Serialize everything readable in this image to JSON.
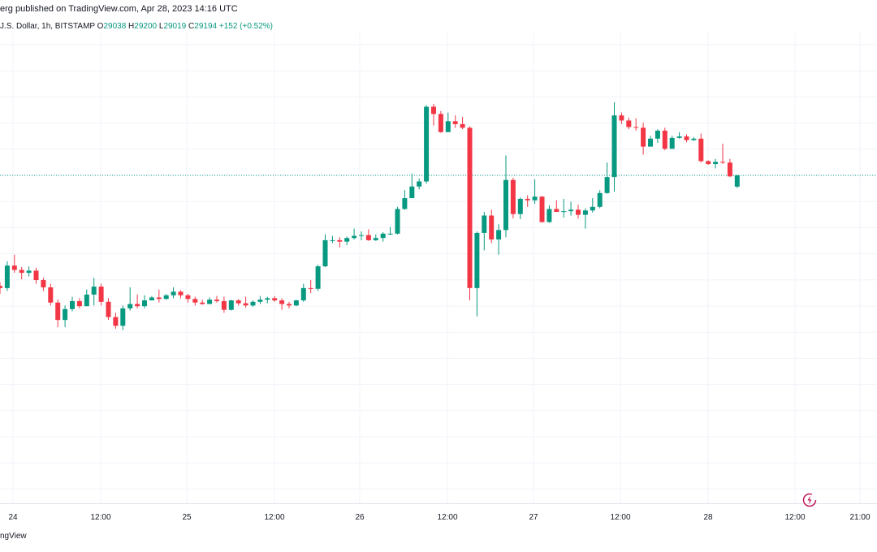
{
  "header": {
    "published": "erg published on TradingView.com, Apr 28, 2023 14:16 UTC",
    "symbol": "J.S. Dollar, 1h, BITSTAMP",
    "o_label": "O",
    "o_value": "29038",
    "h_label": "H",
    "h_value": "29200",
    "l_label": "L",
    "l_value": "29019",
    "c_label": "C",
    "c_value": "29194",
    "change": "+152 (+0.52%)"
  },
  "footer": {
    "brand": "ngView"
  },
  "icons": {
    "alert": "lightning-alert-icon"
  },
  "colors": {
    "up": "#089981",
    "down": "#f23645",
    "grid": "#f0f3fa",
    "last_price_line": "#089981"
  },
  "chart_data": {
    "type": "candlestick",
    "interval": "1h",
    "exchange": "BITSTAMP",
    "x_ticks": [
      "24",
      "12:00",
      "25",
      "12:00",
      "26",
      "12:00",
      "27",
      "12:00",
      "28",
      "12:00",
      "21:00"
    ],
    "last_price": 29194,
    "candles": [
      [
        27670,
        27640,
        27720,
        27560
      ],
      [
        27640,
        27950,
        28010,
        27600
      ],
      [
        27950,
        27890,
        28100,
        27850
      ],
      [
        27890,
        27850,
        27930,
        27760
      ],
      [
        27850,
        27880,
        27940,
        27800
      ],
      [
        27880,
        27750,
        27920,
        27700
      ],
      [
        27750,
        27650,
        27780,
        27600
      ],
      [
        27650,
        27440,
        27700,
        27400
      ],
      [
        27440,
        27200,
        27480,
        27100
      ],
      [
        27200,
        27350,
        27400,
        27100
      ],
      [
        27350,
        27460,
        27520,
        27320
      ],
      [
        27460,
        27390,
        27500,
        27360
      ],
      [
        27390,
        27550,
        27620,
        27390
      ],
      [
        27550,
        27660,
        27780,
        27400
      ],
      [
        27660,
        27450,
        27700,
        27400
      ],
      [
        27450,
        27240,
        27500,
        27200
      ],
      [
        27240,
        27120,
        27300,
        27080
      ],
      [
        27120,
        27360,
        27400,
        27060
      ],
      [
        27360,
        27420,
        27650,
        27330
      ],
      [
        27420,
        27390,
        27550,
        27360
      ],
      [
        27390,
        27470,
        27540,
        27360
      ],
      [
        27470,
        27510,
        27530,
        27470
      ],
      [
        27510,
        27490,
        27620,
        27440
      ],
      [
        27490,
        27540,
        27560,
        27480
      ],
      [
        27540,
        27590,
        27650,
        27500
      ],
      [
        27590,
        27540,
        27610,
        27500
      ],
      [
        27540,
        27490,
        27560,
        27440
      ],
      [
        27490,
        27440,
        27520,
        27400
      ],
      [
        27440,
        27420,
        27480,
        27410
      ],
      [
        27420,
        27480,
        27510,
        27420
      ],
      [
        27480,
        27460,
        27530,
        27440
      ],
      [
        27460,
        27340,
        27520,
        27300
      ],
      [
        27340,
        27470,
        27480,
        27330
      ],
      [
        27470,
        27430,
        27490,
        27400
      ],
      [
        27430,
        27400,
        27520,
        27370
      ],
      [
        27400,
        27450,
        27470,
        27380
      ],
      [
        27450,
        27480,
        27530,
        27420
      ],
      [
        27480,
        27500,
        27520,
        27430
      ],
      [
        27500,
        27470,
        27530,
        27450
      ],
      [
        27470,
        27420,
        27500,
        27340
      ],
      [
        27420,
        27400,
        27450,
        27360
      ],
      [
        27400,
        27470,
        27480,
        27390
      ],
      [
        27470,
        27640,
        27700,
        27450
      ],
      [
        27640,
        27630,
        27750,
        27570
      ],
      [
        27630,
        27940,
        27960,
        27600
      ],
      [
        27940,
        28300,
        28380,
        27930
      ],
      [
        28300,
        28300,
        28360,
        28260
      ],
      [
        28300,
        28280,
        28340,
        28200
      ],
      [
        28280,
        28330,
        28350,
        28230
      ],
      [
        28330,
        28360,
        28460,
        28310
      ],
      [
        28360,
        28370,
        28420,
        28300
      ],
      [
        28370,
        28300,
        28450,
        28290
      ],
      [
        28300,
        28330,
        28380,
        28290
      ],
      [
        28330,
        28390,
        28410,
        28280
      ],
      [
        28390,
        28390,
        28480,
        28370
      ],
      [
        28390,
        28730,
        28760,
        28380
      ],
      [
        28730,
        28880,
        28990,
        28720
      ],
      [
        28880,
        29040,
        29220,
        28880
      ],
      [
        29040,
        29110,
        29150,
        29000
      ],
      [
        29110,
        30140,
        30160,
        29080
      ],
      [
        30140,
        30040,
        30180,
        29880
      ],
      [
        30040,
        29790,
        30080,
        29780
      ],
      [
        29790,
        29940,
        30060,
        29830
      ],
      [
        29940,
        29900,
        30020,
        29850
      ],
      [
        29900,
        29850,
        30000,
        29830
      ],
      [
        29850,
        27640,
        29870,
        27470
      ],
      [
        27640,
        28400,
        28420,
        27250
      ],
      [
        28400,
        28640,
        28690,
        28160
      ],
      [
        28640,
        28310,
        28720,
        28260
      ],
      [
        28310,
        28440,
        28520,
        28100
      ],
      [
        28440,
        29130,
        29470,
        28340
      ],
      [
        29130,
        28660,
        29160,
        28600
      ],
      [
        28660,
        28870,
        28890,
        28590
      ],
      [
        28870,
        28850,
        28920,
        28760
      ],
      [
        28850,
        28900,
        29140,
        28800
      ],
      [
        28900,
        28550,
        28910,
        28540
      ],
      [
        28550,
        28730,
        28780,
        28540
      ],
      [
        28730,
        28690,
        28850,
        28700
      ],
      [
        28690,
        28700,
        28870,
        28610
      ],
      [
        28700,
        28720,
        28830,
        28640
      ],
      [
        28720,
        28650,
        28790,
        28600
      ],
      [
        28650,
        28710,
        28740,
        28460
      ],
      [
        28710,
        28760,
        28880,
        28680
      ],
      [
        28760,
        28950,
        28990,
        28740
      ],
      [
        28950,
        29170,
        29370,
        28940
      ],
      [
        29170,
        30020,
        30200,
        28970
      ],
      [
        30020,
        29950,
        30060,
        29900
      ],
      [
        29950,
        29860,
        29990,
        29830
      ],
      [
        29860,
        29850,
        29980,
        29810
      ],
      [
        29850,
        29590,
        29920,
        29480
      ],
      [
        29590,
        29700,
        29740,
        29650
      ],
      [
        29700,
        29810,
        29830,
        29640
      ],
      [
        29810,
        29560,
        29850,
        29540
      ],
      [
        29560,
        29710,
        29740,
        29690
      ],
      [
        29710,
        29730,
        29790,
        29700
      ],
      [
        29730,
        29680,
        29760,
        29650
      ],
      [
        29680,
        29700,
        29720,
        29670
      ],
      [
        29700,
        29390,
        29770,
        29370
      ],
      [
        29390,
        29350,
        29400,
        29340
      ],
      [
        29350,
        29380,
        29420,
        29290
      ],
      [
        29380,
        29370,
        29630,
        29350
      ],
      [
        29370,
        29180,
        29420,
        29170
      ],
      [
        29038,
        29194,
        29200,
        29019
      ]
    ]
  }
}
